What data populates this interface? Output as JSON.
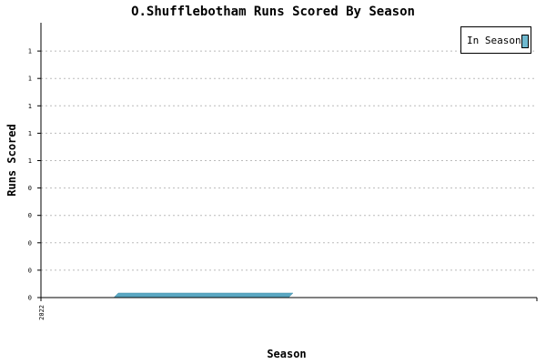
{
  "chart_data": {
    "type": "area",
    "title": "O.Shufflebotham Runs Scored By Season",
    "xlabel": "Season",
    "ylabel": "Runs Scored",
    "x": [
      "2022"
    ],
    "y_tick_labels": [
      "0",
      "0",
      "0",
      "0",
      "0",
      "1",
      "1",
      "1",
      "1",
      "1"
    ],
    "series": [
      {
        "name": "In Season",
        "values": [
          0
        ]
      }
    ],
    "legend_position": "top-right",
    "grid": true,
    "colors": {
      "series": "#5aa7c2",
      "legend_swatch": "#6fb9cf",
      "grid": "#bbbbbb"
    }
  }
}
